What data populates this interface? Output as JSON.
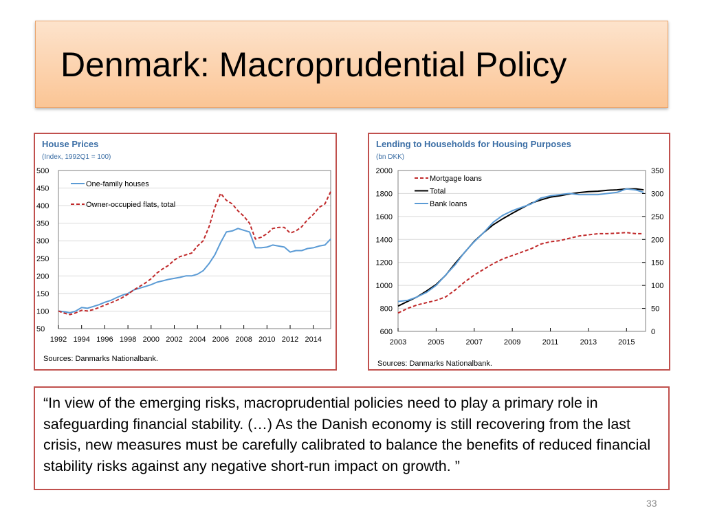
{
  "slide": {
    "title": "Denmark: Macroprudential Policy",
    "quote": "“In view of the emerging risks, macroprudential policies need to play a primary role in safeguarding financial stability. (…)  As the Danish economy is still recovering from the last crisis, new measures must be carefully calibrated to balance the benefits of reduced financial stability risks against any negative short-run impact on growth. ”",
    "page_number": "33"
  },
  "colors": {
    "accent_red": "#c0504d",
    "series_blue": "#5b9bd5",
    "series_red": "#c0292a",
    "series_black": "#000000",
    "title_blue": "#3b6ea5"
  },
  "chart_data": [
    {
      "type": "line",
      "title": "House Prices",
      "subtitle": "(Index, 1992Q1 = 100)",
      "source": "Sources: Danmarks Nationalbank.",
      "xlim": [
        1992,
        2015.5
      ],
      "ylim": [
        50,
        500
      ],
      "x_ticks": [
        "1992",
        "1994",
        "1996",
        "1998",
        "2000",
        "2002",
        "2004",
        "2006",
        "2008",
        "2010",
        "2012",
        "2014"
      ],
      "y_ticks": [
        "50",
        "100",
        "150",
        "200",
        "250",
        "300",
        "350",
        "400",
        "450",
        "500"
      ],
      "x": [
        1992,
        1992.5,
        1993,
        1993.5,
        1994,
        1994.5,
        1995,
        1995.5,
        1996,
        1996.5,
        1997,
        1997.5,
        1998,
        1998.5,
        1999,
        1999.5,
        2000,
        2000.5,
        2001,
        2001.5,
        2002,
        2002.5,
        2003,
        2003.5,
        2004,
        2004.5,
        2005,
        2005.5,
        2006,
        2006.5,
        2007,
        2007.5,
        2008,
        2008.5,
        2009,
        2009.5,
        2010,
        2010.5,
        2011,
        2011.5,
        2012,
        2012.5,
        2013,
        2013.5,
        2014,
        2014.5,
        2015,
        2015.5
      ],
      "series": [
        {
          "name": "One-family houses",
          "color": "#5b9bd5",
          "dash": "solid",
          "values": [
            100,
            98,
            95,
            100,
            110,
            108,
            113,
            118,
            125,
            130,
            138,
            145,
            150,
            160,
            165,
            170,
            175,
            182,
            186,
            190,
            193,
            196,
            200,
            200,
            205,
            215,
            235,
            260,
            295,
            325,
            328,
            335,
            330,
            325,
            280,
            280,
            282,
            288,
            285,
            282,
            268,
            272,
            272,
            278,
            280,
            285,
            288,
            305
          ]
        },
        {
          "name": "Owner-occupied flats, total",
          "color": "#c0292a",
          "dash": "dashed",
          "values": [
            100,
            94,
            90,
            95,
            102,
            100,
            104,
            110,
            117,
            123,
            130,
            138,
            148,
            160,
            170,
            180,
            192,
            208,
            220,
            230,
            245,
            255,
            260,
            265,
            285,
            300,
            340,
            395,
            435,
            415,
            405,
            385,
            370,
            350,
            305,
            310,
            320,
            335,
            338,
            338,
            322,
            328,
            340,
            360,
            375,
            395,
            405,
            440
          ]
        }
      ]
    },
    {
      "type": "line",
      "title": "Lending to Households for Housing Purposes",
      "subtitle": "(bn DKK)",
      "source": "Sources: Danmarks Nationalbank.",
      "xlim": [
        2003,
        2016
      ],
      "ylim": [
        600,
        2000
      ],
      "y2lim": [
        0,
        350
      ],
      "x_ticks": [
        "2003",
        "2005",
        "2007",
        "2009",
        "2011",
        "2013",
        "2015"
      ],
      "y_ticks": [
        "600",
        "800",
        "1000",
        "1200",
        "1400",
        "1600",
        "1800",
        "2000"
      ],
      "y2_ticks": [
        "0",
        "50",
        "100",
        "150",
        "200",
        "250",
        "300",
        "350"
      ],
      "x": [
        2003,
        2003.5,
        2004,
        2004.5,
        2005,
        2005.5,
        2006,
        2006.5,
        2007,
        2007.5,
        2008,
        2008.5,
        2009,
        2009.5,
        2010,
        2010.5,
        2011,
        2011.5,
        2012,
        2012.5,
        2013,
        2013.5,
        2014,
        2014.5,
        2015,
        2015.5,
        2015.9
      ],
      "series": [
        {
          "name": "Mortgage loans",
          "axis": "left",
          "color": "#c0292a",
          "dash": "dashed",
          "values": [
            760,
            800,
            830,
            850,
            870,
            900,
            960,
            1030,
            1090,
            1140,
            1190,
            1230,
            1260,
            1290,
            1320,
            1360,
            1380,
            1390,
            1410,
            1430,
            1440,
            1450,
            1450,
            1455,
            1460,
            1450,
            1450
          ]
        },
        {
          "name": "Total",
          "axis": "right",
          "color": "#000000",
          "dash": "solid",
          "values": [
            55,
            65,
            75,
            88,
            102,
            122,
            148,
            172,
            196,
            215,
            232,
            245,
            257,
            268,
            279,
            286,
            292,
            295,
            299,
            302,
            304,
            305,
            307,
            308,
            310,
            310,
            308
          ]
        },
        {
          "name": "Bank loans",
          "axis": "left",
          "color": "#5b9bd5",
          "dash": "solid",
          "values": [
            860,
            870,
            900,
            940,
            1000,
            1090,
            1180,
            1290,
            1380,
            1460,
            1550,
            1610,
            1650,
            1680,
            1710,
            1760,
            1780,
            1790,
            1800,
            1790,
            1790,
            1790,
            1800,
            1810,
            1840,
            1830,
            1810
          ]
        }
      ]
    }
  ]
}
